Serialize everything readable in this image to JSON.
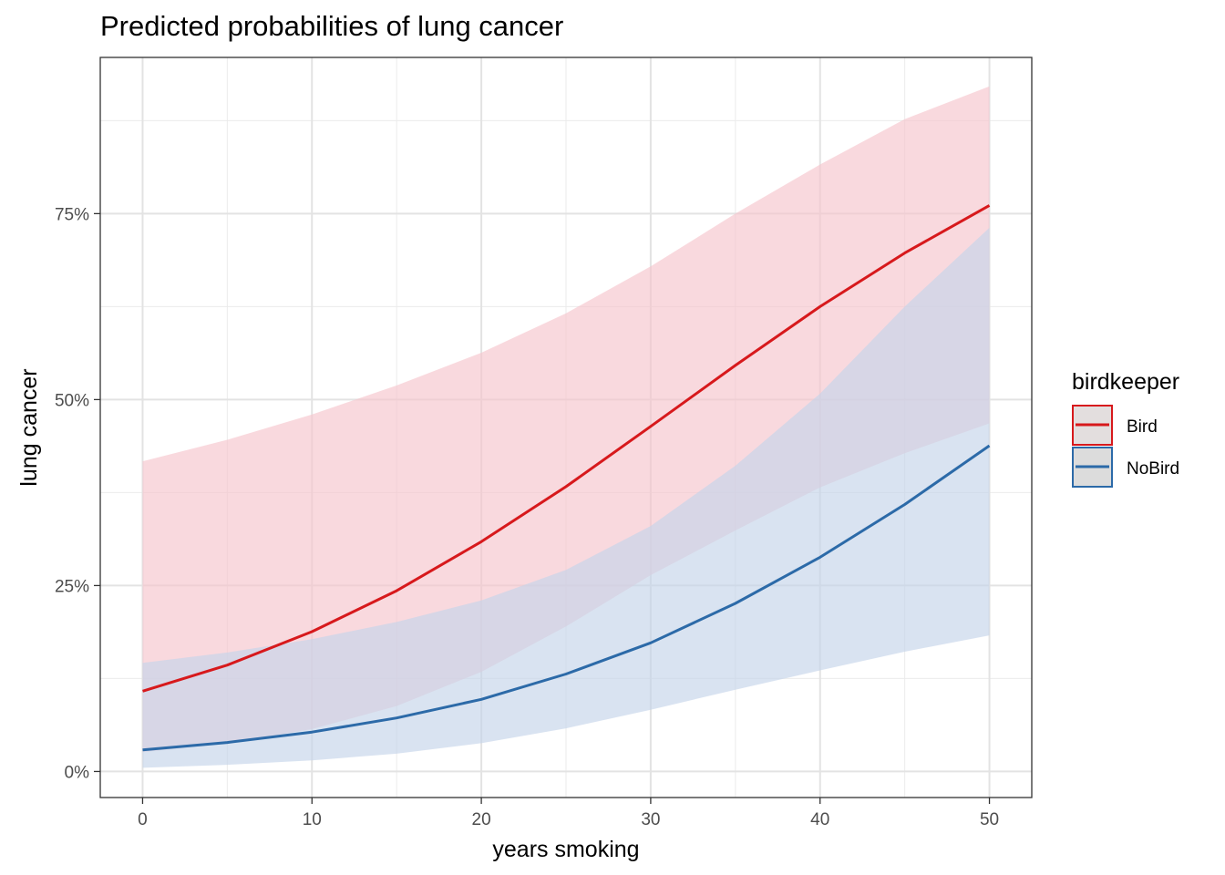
{
  "chart_data": {
    "type": "line",
    "title": "Predicted probabilities of lung cancer",
    "xlabel": "years smoking",
    "ylabel": "lung cancer",
    "xlim": [
      -2.5,
      52.5
    ],
    "ylim": [
      -0.035,
      0.96
    ],
    "x_ticks": [
      0,
      10,
      20,
      30,
      40,
      50
    ],
    "x_tick_labels": [
      "0",
      "10",
      "20",
      "30",
      "40",
      "50"
    ],
    "y_ticks": [
      0,
      0.25,
      0.5,
      0.75
    ],
    "y_tick_labels": [
      "0%",
      "25%",
      "50%",
      "75%"
    ],
    "x_minor_ticks": [
      5,
      15,
      25,
      35,
      45
    ],
    "y_minor_ticks": [
      0.125,
      0.375,
      0.625,
      0.875
    ],
    "grid": true,
    "legend": {
      "title": "birdkeeper",
      "position": "right"
    },
    "series": [
      {
        "name": "Bird",
        "color": "#d7191c",
        "band_color": "#f6c5cc",
        "x": [
          0,
          5,
          10,
          15,
          20,
          25,
          30,
          35,
          40,
          45,
          50
        ],
        "values": [
          0.108,
          0.143,
          0.188,
          0.243,
          0.309,
          0.383,
          0.464,
          0.546,
          0.625,
          0.697,
          0.761
        ],
        "lower": [
          0.026,
          0.038,
          0.057,
          0.088,
          0.134,
          0.195,
          0.264,
          0.324,
          0.382,
          0.428,
          0.468
        ],
        "upper": [
          0.417,
          0.446,
          0.48,
          0.519,
          0.563,
          0.616,
          0.679,
          0.75,
          0.816,
          0.877,
          0.921
        ]
      },
      {
        "name": "NoBird",
        "color": "#2c6aa8",
        "band_color": "#c5d4ea",
        "x": [
          0,
          5,
          10,
          15,
          20,
          25,
          30,
          35,
          40,
          45,
          50
        ],
        "values": [
          0.029,
          0.039,
          0.053,
          0.072,
          0.097,
          0.131,
          0.173,
          0.226,
          0.288,
          0.359,
          0.438
        ],
        "lower": [
          0.005,
          0.009,
          0.015,
          0.024,
          0.038,
          0.058,
          0.083,
          0.11,
          0.136,
          0.161,
          0.183
        ],
        "upper": [
          0.146,
          0.16,
          0.178,
          0.201,
          0.23,
          0.271,
          0.33,
          0.411,
          0.508,
          0.625,
          0.731
        ]
      }
    ]
  }
}
